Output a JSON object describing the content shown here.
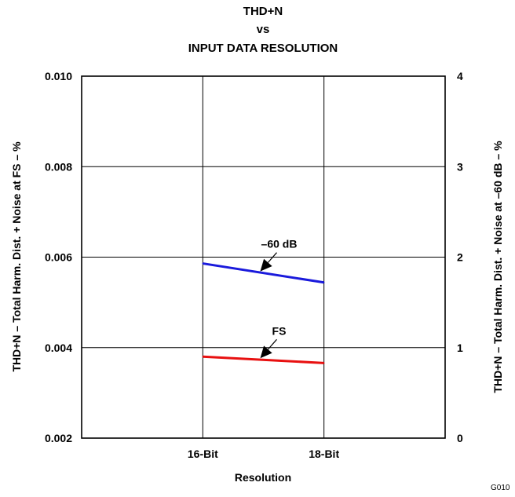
{
  "chart_data": {
    "type": "line",
    "title": [
      "THD+N",
      "vs",
      "INPUT DATA RESOLUTION"
    ],
    "xlabel": "Resolution",
    "ylabel_left": "THD+N – Total Harm. Dist. + Noise at FS – %",
    "ylabel_right": "THD+N – Total Harm. Dist. + Noise at –60 dB – %",
    "categories": [
      "16-Bit",
      "18-Bit"
    ],
    "x_domain": [
      14,
      20
    ],
    "x": [
      16,
      18
    ],
    "ylim_left": [
      0.002,
      0.01
    ],
    "yticks_left": [
      0.002,
      0.004,
      0.006,
      0.008,
      0.01
    ],
    "ytick_labels_left": [
      "0.002",
      "0.004",
      "0.006",
      "0.008",
      "0.010"
    ],
    "ylim_right": [
      0,
      4
    ],
    "yticks_right": [
      0,
      1,
      2,
      3,
      4
    ],
    "ytick_labels_right": [
      "0",
      "1",
      "2",
      "3",
      "4"
    ],
    "grid": true,
    "series": [
      {
        "name": "–60 dB",
        "axis": "right",
        "color": "#1a1adc",
        "values": [
          1.93,
          1.72
        ]
      },
      {
        "name": "FS",
        "axis": "left",
        "color": "#e81010",
        "values": [
          0.0038,
          0.00366
        ]
      }
    ],
    "figure_code": "G010"
  }
}
